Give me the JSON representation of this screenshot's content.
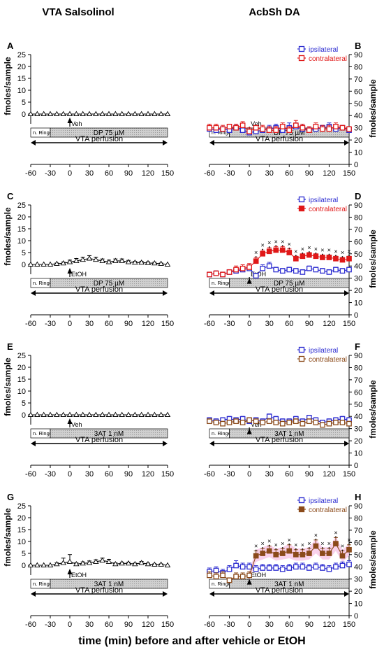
{
  "header": {
    "left_title": "VTA Salsolinol",
    "right_title": "AcbSh DA"
  },
  "x_axis_caption": "time (min) before and after vehicle or EtOH",
  "common": {
    "y_label_left": "fmoles/sample",
    "y_label_right": "fmoles/sample",
    "x_ticks": [
      "-60",
      "-30",
      "0",
      "30",
      "60",
      "90",
      "120",
      "150"
    ],
    "left_y_ticks": [
      "0",
      "5",
      "10",
      "15",
      "20",
      "25"
    ],
    "right_y_ticks": [
      "0",
      "10",
      "20",
      "30",
      "40",
      "50",
      "60",
      "70",
      "80",
      "90"
    ],
    "perfusion_label": "VTA perfusion",
    "ringer_label": "n. Ringer",
    "legend_ipsi": "ipsilateral",
    "legend_contra": "contralateral"
  },
  "colors": {
    "ipsi": "#2b2bd0",
    "contra_red": "#e01818",
    "contra_brown": "#8b4a1a",
    "bar_fill": "#c8c8c8",
    "shade": "#f7c6e6",
    "axis": "#000000"
  },
  "chart_data": [
    {
      "panel": "A",
      "type": "line",
      "side": "left",
      "xlim": [
        -60,
        150
      ],
      "ylim": [
        0,
        25
      ],
      "drug_label": "DP 75 µM",
      "injection_label": "Veh",
      "series": [
        {
          "marker": "triangle",
          "x": [
            -60,
            -50,
            -40,
            -30,
            -20,
            -10,
            0,
            10,
            20,
            30,
            40,
            50,
            60,
            70,
            80,
            90,
            100,
            110,
            120,
            130,
            140,
            150
          ],
          "y": [
            0,
            0,
            0,
            0,
            0,
            0,
            0,
            0,
            0,
            0,
            0,
            0,
            0,
            0,
            0,
            0,
            0,
            0,
            0,
            0,
            0,
            0
          ],
          "err": [
            0,
            0,
            0,
            0,
            0,
            0,
            0,
            0,
            0,
            0,
            0,
            0,
            0,
            0,
            0,
            0,
            0,
            0,
            0,
            0,
            0,
            0
          ]
        }
      ]
    },
    {
      "panel": "B",
      "type": "line",
      "side": "right",
      "xlim": [
        -60,
        150
      ],
      "ylim": [
        0,
        90
      ],
      "drug_label": "DP 75 µM",
      "injection_label": "Veh",
      "legend": [
        "ipsilateral",
        "contralateral"
      ],
      "series": [
        {
          "name": "ipsilateral",
          "marker": "square-open",
          "color": "#2b2bd0",
          "x": [
            -60,
            -50,
            -40,
            -30,
            -20,
            -10,
            0,
            10,
            20,
            30,
            40,
            50,
            60,
            70,
            80,
            90,
            100,
            110,
            120,
            130,
            140,
            150
          ],
          "y": [
            29,
            28,
            29,
            28,
            30,
            28,
            26,
            27,
            28,
            29,
            30,
            28,
            30,
            31,
            29,
            28,
            29,
            30,
            31,
            29,
            30,
            28
          ],
          "err": [
            2,
            2,
            2,
            2,
            2,
            2,
            2,
            2,
            2,
            3,
            3,
            2,
            4,
            3,
            3,
            2,
            2,
            2,
            3,
            3,
            2,
            2
          ]
        },
        {
          "name": "contralateral",
          "marker": "square-open",
          "color": "#e01818",
          "x": [
            -60,
            -50,
            -40,
            -30,
            -20,
            -10,
            0,
            10,
            20,
            30,
            40,
            50,
            60,
            70,
            80,
            90,
            100,
            110,
            120,
            130,
            140,
            150
          ],
          "y": [
            30,
            30,
            29,
            31,
            30,
            32,
            27,
            30,
            29,
            28,
            28,
            31,
            28,
            32,
            30,
            28,
            31,
            29,
            29,
            31,
            30,
            29
          ],
          "err": [
            3,
            3,
            3,
            2,
            3,
            3,
            3,
            2,
            3,
            3,
            3,
            3,
            3,
            4,
            3,
            3,
            3,
            3,
            3,
            3,
            2,
            2
          ]
        }
      ]
    },
    {
      "panel": "C",
      "type": "line",
      "side": "left",
      "xlim": [
        -60,
        150
      ],
      "ylim": [
        0,
        25
      ],
      "drug_label": "DP 75 µM",
      "injection_label": "EtOH",
      "series": [
        {
          "marker": "triangle",
          "x": [
            -60,
            -50,
            -40,
            -30,
            -20,
            -10,
            0,
            10,
            20,
            30,
            40,
            50,
            60,
            70,
            80,
            90,
            100,
            110,
            120,
            130,
            140,
            150
          ],
          "y": [
            0,
            0,
            0,
            0,
            0.3,
            0.5,
            1,
            1.5,
            2,
            2.5,
            2,
            1.5,
            1,
            1.5,
            1.5,
            1,
            0.8,
            0.8,
            0.6,
            0.5,
            0.3,
            0
          ],
          "err": [
            0,
            0,
            0,
            0,
            0.3,
            0.5,
            0.8,
            1,
            1,
            1.2,
            1,
            0.8,
            0.8,
            0.8,
            0.8,
            0.7,
            0.5,
            0.5,
            0.5,
            0.4,
            0.3,
            0
          ]
        }
      ]
    },
    {
      "panel": "D",
      "type": "line",
      "side": "right",
      "xlim": [
        -60,
        150
      ],
      "ylim": [
        0,
        90
      ],
      "drug_label": "DP 75 µM",
      "injection_label": "EtOH",
      "legend": [
        "ipsilateral",
        "contralateral"
      ],
      "significance_marker": "×",
      "series": [
        {
          "name": "ipsilateral",
          "marker": "square-open",
          "color": "#2b2bd0",
          "x": [
            -60,
            -50,
            -40,
            -30,
            -20,
            -10,
            0,
            10,
            20,
            30,
            40,
            50,
            60,
            70,
            80,
            90,
            100,
            110,
            120,
            130,
            140,
            150
          ],
          "y": [
            33,
            34,
            33,
            35,
            36,
            37,
            38,
            32,
            38,
            40,
            37,
            36,
            37,
            36,
            35,
            38,
            37,
            36,
            35,
            37,
            36,
            37
          ],
          "err": [
            2,
            2,
            2,
            2,
            2,
            2,
            3,
            2,
            3,
            3,
            2,
            2,
            2,
            2,
            2,
            2,
            2,
            2,
            2,
            2,
            2,
            2
          ]
        },
        {
          "name": "contralateral",
          "marker": "square-filled",
          "color": "#e01818",
          "x": [
            -60,
            -50,
            -40,
            -30,
            -20,
            -10,
            0,
            10,
            20,
            30,
            40,
            50,
            60,
            70,
            80,
            90,
            100,
            110,
            120,
            130,
            140,
            150
          ],
          "y": [
            33,
            34,
            33,
            35,
            37,
            38,
            39,
            44,
            50,
            52,
            53,
            53,
            51,
            46,
            48,
            49,
            48,
            47,
            47,
            46,
            45,
            46
          ],
          "err": [
            2,
            2,
            2,
            2,
            3,
            3,
            3,
            3,
            3,
            3,
            3,
            3,
            3,
            2,
            2,
            2,
            2,
            2,
            2,
            2,
            2,
            2
          ],
          "significant": [
            false,
            false,
            false,
            false,
            false,
            false,
            false,
            true,
            true,
            true,
            true,
            true,
            true,
            true,
            true,
            true,
            true,
            true,
            true,
            true,
            true,
            true
          ]
        }
      ]
    },
    {
      "panel": "E",
      "type": "line",
      "side": "left",
      "xlim": [
        -60,
        150
      ],
      "ylim": [
        0,
        25
      ],
      "drug_label": "3AT 1 nM",
      "injection_label": "Veh",
      "series": [
        {
          "marker": "triangle",
          "x": [
            -60,
            -50,
            -40,
            -30,
            -20,
            -10,
            0,
            10,
            20,
            30,
            40,
            50,
            60,
            70,
            80,
            90,
            100,
            110,
            120,
            130,
            140,
            150
          ],
          "y": [
            0,
            0,
            0,
            0,
            0,
            0,
            0,
            0,
            0,
            0,
            0,
            0,
            0,
            0,
            0,
            0,
            0,
            0,
            0,
            0,
            0,
            0
          ],
          "err": [
            0,
            0,
            0,
            0,
            0,
            0,
            0,
            0,
            0,
            0,
            0,
            0,
            0,
            0,
            0,
            0,
            0,
            0,
            0,
            0,
            0,
            0
          ]
        }
      ]
    },
    {
      "panel": "F",
      "type": "line",
      "side": "right",
      "xlim": [
        -60,
        150
      ],
      "ylim": [
        0,
        90
      ],
      "drug_label": "3AT 1 nM",
      "injection_label": "Veh",
      "legend": [
        "ipsilateral",
        "contralateral"
      ],
      "series": [
        {
          "name": "ipsilateral",
          "marker": "square-open",
          "color": "#2b2bd0",
          "x": [
            -60,
            -50,
            -40,
            -30,
            -20,
            -10,
            0,
            10,
            20,
            30,
            40,
            50,
            60,
            70,
            80,
            90,
            100,
            110,
            120,
            130,
            140,
            150
          ],
          "y": [
            37,
            36,
            37,
            38,
            37,
            38,
            36,
            37,
            36,
            40,
            38,
            36,
            36,
            38,
            36,
            39,
            37,
            35,
            36,
            37,
            38,
            37
          ],
          "err": [
            2,
            2,
            2,
            2,
            2,
            2,
            2,
            2,
            2,
            2,
            2,
            2,
            2,
            2,
            2,
            2,
            2,
            2,
            2,
            2,
            2,
            2
          ]
        },
        {
          "name": "contralateral",
          "marker": "square-open",
          "color": "#8b4a1a",
          "x": [
            -60,
            -50,
            -40,
            -30,
            -20,
            -10,
            0,
            10,
            20,
            30,
            40,
            50,
            60,
            70,
            80,
            90,
            100,
            110,
            120,
            130,
            140,
            150
          ],
          "y": [
            36,
            35,
            34,
            35,
            36,
            35,
            37,
            36,
            35,
            36,
            35,
            34,
            35,
            36,
            34,
            36,
            35,
            33,
            34,
            35,
            35,
            34
          ],
          "err": [
            2,
            2,
            2,
            2,
            2,
            2,
            2,
            2,
            2,
            2,
            2,
            2,
            2,
            2,
            2,
            2,
            2,
            2,
            2,
            2,
            2,
            2
          ]
        }
      ]
    },
    {
      "panel": "G",
      "type": "line",
      "side": "left",
      "xlim": [
        -60,
        150
      ],
      "ylim": [
        0,
        25
      ],
      "drug_label": "3AT 1 nM",
      "injection_label": "EtOH",
      "series": [
        {
          "marker": "triangle",
          "x": [
            -60,
            -50,
            -40,
            -30,
            -20,
            -10,
            0,
            10,
            20,
            30,
            40,
            50,
            60,
            70,
            80,
            90,
            100,
            110,
            120,
            130,
            140,
            150
          ],
          "y": [
            0,
            0,
            0,
            0,
            0.5,
            1,
            1.5,
            0.5,
            0.8,
            1,
            1.5,
            2,
            1.5,
            0.5,
            0.8,
            0.8,
            0.5,
            1,
            0.5,
            0.3,
            0.3,
            0
          ],
          "err": [
            0,
            0,
            0,
            0,
            0.5,
            2,
            3,
            0.5,
            0.6,
            0.8,
            0.8,
            1,
            1,
            0.5,
            0.5,
            0.5,
            0.4,
            0.6,
            0.4,
            0.3,
            0.3,
            0
          ]
        }
      ]
    },
    {
      "panel": "H",
      "type": "line",
      "side": "right",
      "xlim": [
        -60,
        150
      ],
      "ylim": [
        0,
        90
      ],
      "drug_label": "3AT 1 nM",
      "injection_label": "EtOH",
      "legend": [
        "ipsilateral",
        "contralateral"
      ],
      "significance_marker": "×",
      "series": [
        {
          "name": "ipsilateral",
          "marker": "square-open",
          "color": "#2b2bd0",
          "x": [
            -60,
            -50,
            -40,
            -30,
            -20,
            -10,
            0,
            10,
            20,
            30,
            40,
            50,
            60,
            70,
            80,
            90,
            100,
            110,
            120,
            130,
            140,
            150
          ],
          "y": [
            36,
            37,
            35,
            38,
            41,
            40,
            40,
            38,
            39,
            39,
            39,
            38,
            39,
            40,
            40,
            39,
            40,
            39,
            38,
            40,
            41,
            42
          ],
          "err": [
            3,
            3,
            3,
            3,
            4,
            3,
            3,
            3,
            3,
            3,
            3,
            3,
            3,
            3,
            3,
            3,
            3,
            3,
            3,
            3,
            3,
            3
          ]
        },
        {
          "name": "contralateral",
          "marker": "square-filled",
          "color": "#8b4a1a",
          "x": [
            -60,
            -50,
            -40,
            -30,
            -20,
            -10,
            0,
            10,
            20,
            30,
            40,
            50,
            60,
            70,
            80,
            90,
            100,
            110,
            120,
            130,
            140,
            150
          ],
          "y": [
            33,
            32,
            33,
            29,
            32,
            32,
            33,
            49,
            51,
            53,
            50,
            51,
            53,
            50,
            50,
            51,
            57,
            51,
            51,
            59,
            49,
            54
          ],
          "err": [
            3,
            3,
            3,
            2,
            3,
            3,
            3,
            4,
            4,
            4,
            4,
            4,
            5,
            4,
            4,
            4,
            5,
            4,
            4,
            5,
            4,
            4
          ],
          "significant": [
            false,
            false,
            false,
            false,
            false,
            false,
            false,
            true,
            true,
            true,
            true,
            true,
            true,
            true,
            true,
            true,
            true,
            true,
            true,
            true,
            true,
            true
          ]
        }
      ]
    }
  ]
}
